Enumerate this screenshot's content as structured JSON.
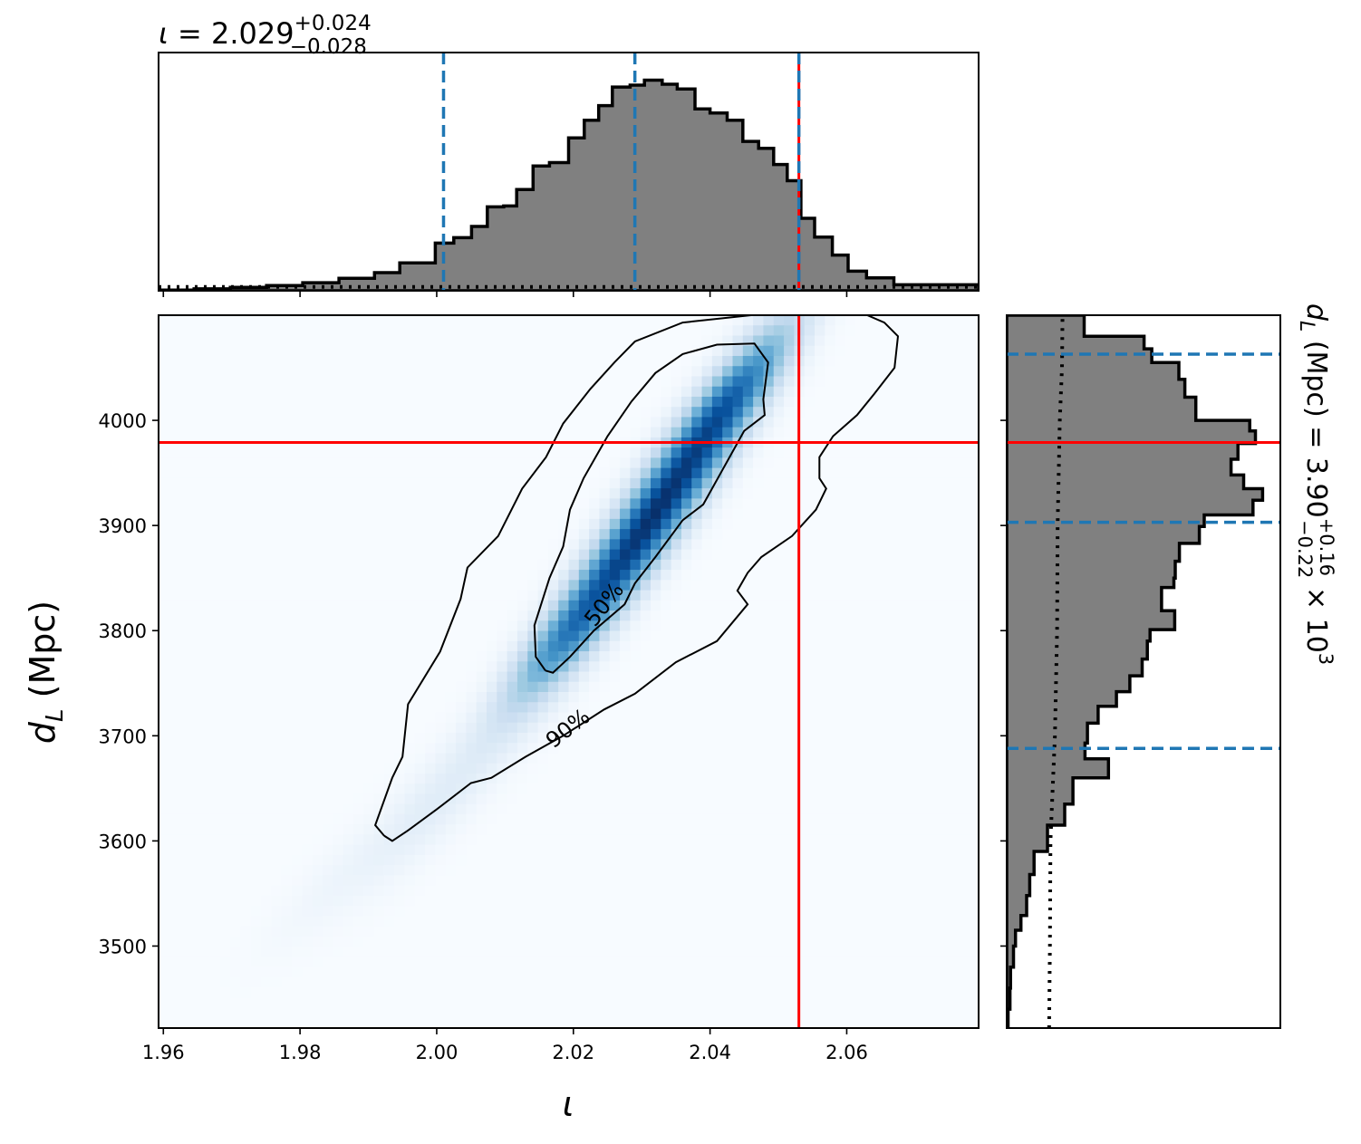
{
  "chart_data": {
    "type": "corner",
    "title_top": {
      "symbol": "ι",
      "value": "2.029",
      "plus": "+0.024",
      "minus": "−0.028",
      "equals": " = "
    },
    "title_right": {
      "symbol": "d",
      "sub": "L",
      "unit": " (Mpc) = ",
      "value": "3.90",
      "plus": "+0.16",
      "minus": "−0.22",
      "times": " × 10",
      "exp": "3"
    },
    "xlabel": "ι",
    "ylabel": {
      "symbol": "d",
      "sub": "L",
      "unit": " (Mpc)"
    },
    "x_ticks": [
      "1.96",
      "1.98",
      "2.00",
      "2.02",
      "2.04",
      "2.06"
    ],
    "x_tick_values": [
      1.96,
      1.98,
      2.0,
      2.02,
      2.04,
      2.06
    ],
    "y_ticks": [
      "3500",
      "3600",
      "3700",
      "3800",
      "3900",
      "4000"
    ],
    "y_tick_values": [
      3500,
      3600,
      3700,
      3800,
      3900,
      4000
    ],
    "xlim": [
      1.9593,
      2.0793
    ],
    "ylim": [
      3422,
      4100
    ],
    "true_value": {
      "x": 2.053,
      "y": 3979,
      "color": "#ff0000"
    },
    "quantiles_x": [
      2.001,
      2.029,
      2.053
    ],
    "quantiles_y": [
      3688,
      3903,
      4063
    ],
    "quantile_color": "#1f77b4",
    "hist_color": "#808080",
    "colormap": "Blues",
    "contour_labels": [
      "50%",
      "90%"
    ],
    "hist_x": {
      "bin_edges": [
        1.9593,
        1.9645,
        1.9698,
        1.9751,
        1.9804,
        1.9857,
        1.9909,
        1.9946,
        1.9998,
        2.0025,
        2.0051,
        2.0074,
        2.0098,
        2.0117,
        2.0141,
        2.0165,
        2.0193,
        2.0216,
        2.0237,
        2.0257,
        2.0283,
        2.0304,
        2.033,
        2.0352,
        2.0378,
        2.04,
        2.0425,
        2.0448,
        2.0471,
        2.0493,
        2.0513,
        2.0533,
        2.0553,
        2.0579,
        2.0602,
        2.0629,
        2.0669,
        2.0793
      ],
      "density": [
        0.3,
        0.8,
        1.4,
        2.2,
        3.4,
        5.2,
        7.6,
        11.7,
        20.0,
        22.3,
        27.0,
        35.2,
        35.6,
        42.5,
        52.4,
        53.8,
        64.2,
        71.6,
        77.7,
        85.5,
        86.3,
        88.4,
        86.7,
        84.7,
        76.3,
        74.6,
        71.6,
        62.7,
        59.8,
        53.0,
        46.2,
        30.4,
        22.5,
        15.0,
        8.2,
        5.4,
        2.5
      ]
    },
    "hist_y": {
      "bin_edges": [
        3422,
        3440,
        3460,
        3480,
        3500,
        3515,
        3529,
        3548,
        3568,
        3590,
        3615,
        3635,
        3660,
        3678,
        3693,
        3712,
        3728,
        3742,
        3757,
        3773,
        3790,
        3801,
        3819,
        3841,
        3850,
        3866,
        3883,
        3899,
        3910,
        3924,
        3935,
        3948,
        3963,
        3978,
        3990,
        4000,
        4022,
        4039,
        4055,
        4068,
        4080,
        4100
      ],
      "density": [
        0.5,
        1.2,
        1.4,
        2.5,
        3.2,
        5.2,
        7.3,
        8.4,
        10.0,
        14.9,
        21.2,
        24.2,
        37.2,
        28.6,
        29.5,
        33.4,
        40.1,
        45.0,
        49.5,
        51.4,
        52.4,
        61.4,
        56.6,
        61.1,
        61.6,
        63.1,
        70.4,
        72.2,
        90.0,
        93.5,
        86.6,
        82.0,
        84.5,
        90.9,
        88.8,
        69.1,
        65.1,
        62.9,
        53.0,
        50.2,
        28.3
      ]
    },
    "prior_x": 1.6,
    "prior_y_points": [
      [
        3422,
        15.5
      ],
      [
        3500,
        15.8
      ],
      [
        3600,
        16.0
      ],
      [
        3700,
        17.6
      ],
      [
        3800,
        18.4
      ],
      [
        3900,
        18.6
      ],
      [
        4000,
        19.4
      ],
      [
        4050,
        20.2
      ],
      [
        4100,
        20.4
      ]
    ],
    "kde": {
      "components": [
        {
          "mx": 2.032,
          "my": 3912,
          "sx": 0.0105,
          "sy": 95,
          "rho": 0.94,
          "w": 1.0
        },
        {
          "mx": 2.044,
          "my": 4030,
          "sx": 0.006,
          "sy": 45,
          "rho": 0.85,
          "w": 0.35
        },
        {
          "mx": 2.018,
          "my": 3790,
          "sx": 0.006,
          "sy": 45,
          "rho": 0.85,
          "w": 0.3
        },
        {
          "mx": 2.0,
          "my": 3640,
          "sx": 0.0075,
          "sy": 55,
          "rho": 0.85,
          "w": 0.1
        },
        {
          "mx": 1.985,
          "my": 3560,
          "sx": 0.007,
          "sy": 45,
          "rho": 0.85,
          "w": 0.04
        }
      ]
    },
    "contour_50": [
      [
        2.0159,
        3762
      ],
      [
        2.0145,
        3775
      ],
      [
        2.0143,
        3805
      ],
      [
        2.0165,
        3850
      ],
      [
        2.0185,
        3880
      ],
      [
        2.0195,
        3915
      ],
      [
        2.0215,
        3945
      ],
      [
        2.025,
        3985
      ],
      [
        2.0285,
        4018
      ],
      [
        2.032,
        4045
      ],
      [
        2.036,
        4063
      ],
      [
        2.041,
        4072
      ],
      [
        2.0465,
        4073
      ],
      [
        2.0485,
        4055
      ],
      [
        2.0478,
        4020
      ],
      [
        2.048,
        4005
      ],
      [
        2.045,
        3990
      ],
      [
        2.042,
        3955
      ],
      [
        2.039,
        3920
      ],
      [
        2.036,
        3905
      ],
      [
        2.032,
        3870
      ],
      [
        2.029,
        3845
      ],
      [
        2.0275,
        3825
      ],
      [
        2.023,
        3800
      ],
      [
        2.0195,
        3775
      ],
      [
        2.017,
        3760
      ],
      [
        2.0159,
        3762
      ]
    ],
    "contour_90": [
      [
        1.9923,
        3605
      ],
      [
        1.991,
        3615
      ],
      [
        1.9935,
        3660
      ],
      [
        1.995,
        3680
      ],
      [
        1.9958,
        3730
      ],
      [
        2.0005,
        3780
      ],
      [
        2.0035,
        3830
      ],
      [
        2.0045,
        3860
      ],
      [
        2.009,
        3890
      ],
      [
        2.0125,
        3935
      ],
      [
        2.016,
        3965
      ],
      [
        2.0185,
        3997
      ],
      [
        2.0225,
        4030
      ],
      [
        2.026,
        4055
      ],
      [
        2.029,
        4075
      ],
      [
        2.036,
        4093
      ],
      [
        2.046,
        4100
      ],
      [
        2.057,
        4100
      ],
      [
        2.063,
        4100
      ],
      [
        2.0655,
        4093
      ],
      [
        2.0675,
        4080
      ],
      [
        2.067,
        4050
      ],
      [
        2.064,
        4025
      ],
      [
        2.0615,
        4005
      ],
      [
        2.058,
        3985
      ],
      [
        2.056,
        3965
      ],
      [
        2.056,
        3945
      ],
      [
        2.057,
        3935
      ],
      [
        2.0555,
        3915
      ],
      [
        2.052,
        3890
      ],
      [
        2.0475,
        3870
      ],
      [
        2.0455,
        3855
      ],
      [
        2.044,
        3838
      ],
      [
        2.0455,
        3825
      ],
      [
        2.041,
        3790
      ],
      [
        2.035,
        3770
      ],
      [
        2.029,
        3740
      ],
      [
        2.0245,
        3725
      ],
      [
        2.0185,
        3700
      ],
      [
        2.013,
        3680
      ],
      [
        2.008,
        3660
      ],
      [
        2.005,
        3655
      ],
      [
        2.0,
        3630
      ],
      [
        1.9958,
        3610
      ],
      [
        1.9935,
        3600
      ],
      [
        1.9923,
        3605
      ]
    ]
  }
}
